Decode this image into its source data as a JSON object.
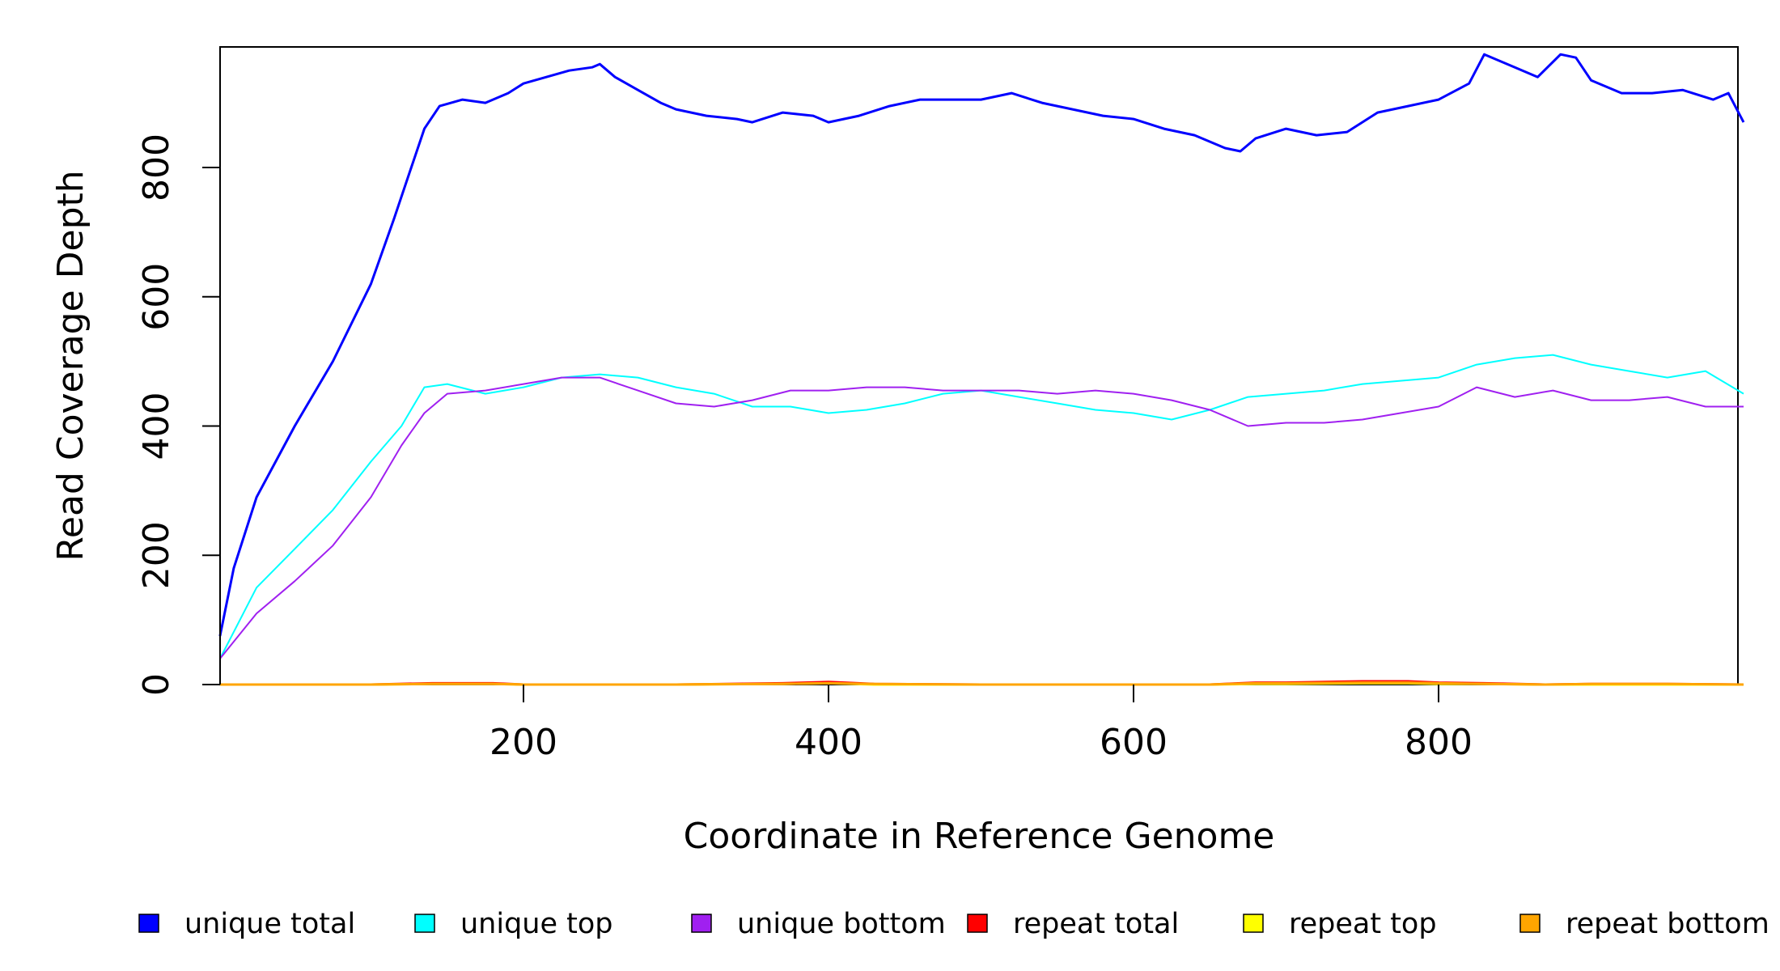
{
  "chart_data": {
    "type": "line",
    "xlabel": "Coordinate in Reference Genome",
    "ylabel": "Read Coverage Depth",
    "xlim": [
      1,
      1000
    ],
    "ylim": [
      0,
      985
    ],
    "xticks": [
      200,
      400,
      600,
      800
    ],
    "yticks": [
      0,
      200,
      400,
      600,
      800
    ],
    "grid": false,
    "legend_position": "bottom",
    "series": [
      {
        "name": "unique total",
        "color": "#0000ff",
        "x": [
          1,
          10,
          25,
          50,
          75,
          100,
          115,
          125,
          135,
          145,
          160,
          175,
          190,
          200,
          215,
          230,
          245,
          250,
          260,
          275,
          290,
          300,
          320,
          340,
          350,
          370,
          390,
          400,
          410,
          420,
          440,
          460,
          480,
          500,
          520,
          540,
          560,
          580,
          600,
          620,
          640,
          660,
          670,
          680,
          700,
          720,
          740,
          760,
          780,
          800,
          820,
          830,
          850,
          865,
          880,
          890,
          900,
          920,
          940,
          960,
          980,
          990,
          1000
        ],
        "values": [
          75,
          180,
          290,
          400,
          500,
          620,
          720,
          790,
          860,
          895,
          905,
          900,
          915,
          930,
          940,
          950,
          955,
          960,
          940,
          920,
          900,
          890,
          880,
          875,
          870,
          885,
          880,
          870,
          875,
          880,
          895,
          905,
          905,
          905,
          915,
          900,
          890,
          880,
          875,
          860,
          850,
          830,
          825,
          845,
          860,
          850,
          855,
          885,
          895,
          905,
          930,
          975,
          955,
          940,
          975,
          970,
          935,
          915,
          915,
          920,
          905,
          915,
          870
        ]
      },
      {
        "name": "unique top",
        "color": "#00ffff",
        "x": [
          1,
          25,
          50,
          75,
          100,
          120,
          135,
          150,
          175,
          200,
          225,
          250,
          275,
          300,
          325,
          350,
          375,
          400,
          425,
          450,
          475,
          500,
          525,
          550,
          575,
          600,
          625,
          650,
          675,
          700,
          725,
          750,
          775,
          800,
          825,
          850,
          875,
          900,
          925,
          950,
          975,
          1000
        ],
        "values": [
          40,
          150,
          210,
          270,
          345,
          400,
          460,
          465,
          450,
          460,
          475,
          480,
          475,
          460,
          450,
          430,
          430,
          420,
          425,
          435,
          450,
          455,
          445,
          435,
          425,
          420,
          410,
          425,
          445,
          450,
          455,
          465,
          470,
          475,
          495,
          505,
          510,
          495,
          485,
          475,
          485,
          450
        ]
      },
      {
        "name": "unique bottom",
        "color": "#a020f0",
        "x": [
          1,
          25,
          50,
          75,
          100,
          120,
          135,
          150,
          175,
          200,
          225,
          250,
          275,
          300,
          325,
          350,
          375,
          400,
          425,
          450,
          475,
          500,
          525,
          550,
          575,
          600,
          625,
          650,
          675,
          700,
          725,
          750,
          775,
          800,
          825,
          850,
          875,
          900,
          925,
          950,
          975,
          1000
        ],
        "values": [
          40,
          110,
          160,
          215,
          290,
          370,
          420,
          450,
          455,
          465,
          475,
          475,
          455,
          435,
          430,
          440,
          455,
          455,
          460,
          460,
          455,
          455,
          455,
          450,
          455,
          450,
          440,
          425,
          400,
          405,
          405,
          410,
          420,
          430,
          460,
          445,
          455,
          440,
          440,
          445,
          430,
          430
        ]
      },
      {
        "name": "repeat total",
        "color": "#ff0000",
        "x": [
          1,
          100,
          140,
          180,
          200,
          300,
          370,
          400,
          430,
          500,
          600,
          650,
          680,
          700,
          750,
          780,
          800,
          830,
          870,
          900,
          950,
          1000
        ],
        "values": [
          0,
          0,
          2,
          2,
          0,
          0,
          2,
          4,
          1,
          0,
          0,
          0,
          3,
          3,
          5,
          5,
          3,
          2,
          0,
          1,
          1,
          0
        ]
      },
      {
        "name": "repeat top",
        "color": "#ffff00",
        "x": [
          1,
          100,
          140,
          180,
          200,
          300,
          370,
          400,
          430,
          500,
          600,
          650,
          680,
          700,
          750,
          780,
          800,
          830,
          870,
          900,
          950,
          1000
        ],
        "values": [
          0,
          0,
          1,
          1,
          0,
          0,
          1,
          2,
          0,
          0,
          0,
          0,
          1,
          1,
          2,
          2,
          1,
          1,
          0,
          0,
          0,
          0
        ]
      },
      {
        "name": "repeat bottom",
        "color": "#ffa500",
        "x": [
          1,
          100,
          140,
          180,
          200,
          300,
          370,
          400,
          430,
          500,
          600,
          650,
          680,
          700,
          750,
          780,
          800,
          830,
          870,
          900,
          950,
          1000
        ],
        "values": [
          0,
          0,
          1,
          1,
          0,
          0,
          1,
          2,
          1,
          0,
          0,
          0,
          2,
          2,
          3,
          3,
          2,
          1,
          0,
          1,
          1,
          0
        ]
      }
    ]
  }
}
